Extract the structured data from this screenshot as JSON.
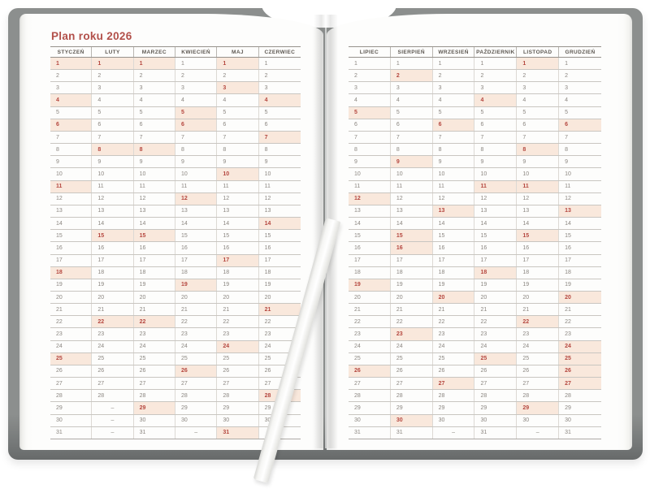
{
  "title": "Plan roku 2026",
  "year": "2026",
  "calendar": {
    "day_numbers": [
      1,
      2,
      3,
      4,
      5,
      6,
      7,
      8,
      9,
      10,
      11,
      12,
      13,
      14,
      15,
      16,
      17,
      18,
      19,
      20,
      21,
      22,
      23,
      24,
      25,
      26,
      27,
      28,
      29,
      30,
      31
    ],
    "placeholder": "–",
    "left_months": [
      {
        "name": "STYCZEŃ",
        "days_in_month": 31,
        "highlighted_days": [
          1,
          4,
          6,
          11,
          18,
          25
        ]
      },
      {
        "name": "LUTY",
        "days_in_month": 28,
        "highlighted_days": [
          1,
          8,
          15,
          22
        ]
      },
      {
        "name": "MARZEC",
        "days_in_month": 31,
        "highlighted_days": [
          1,
          8,
          15,
          22,
          29
        ]
      },
      {
        "name": "KWIECIEŃ",
        "days_in_month": 30,
        "highlighted_days": [
          5,
          6,
          12,
          19,
          26
        ]
      },
      {
        "name": "MAJ",
        "days_in_month": 31,
        "highlighted_days": [
          1,
          3,
          10,
          17,
          24,
          31
        ]
      },
      {
        "name": "CZERWIEC",
        "days_in_month": 30,
        "highlighted_days": [
          4,
          7,
          14,
          21,
          28
        ]
      }
    ],
    "right_months": [
      {
        "name": "LIPIEC",
        "days_in_month": 31,
        "highlighted_days": [
          5,
          12,
          19,
          26
        ]
      },
      {
        "name": "SIERPIEŃ",
        "days_in_month": 31,
        "highlighted_days": [
          2,
          9,
          15,
          16,
          23,
          30
        ]
      },
      {
        "name": "WRZESIEŃ",
        "days_in_month": 30,
        "highlighted_days": [
          6,
          13,
          20,
          27
        ]
      },
      {
        "name": "PAŹDZIERNIK",
        "days_in_month": 31,
        "highlighted_days": [
          4,
          11,
          18,
          25
        ]
      },
      {
        "name": "LISTOPAD",
        "days_in_month": 30,
        "highlighted_days": [
          1,
          8,
          11,
          15,
          22,
          29
        ]
      },
      {
        "name": "GRUDZIEŃ",
        "days_in_month": 31,
        "highlighted_days": [
          6,
          13,
          20,
          24,
          25,
          26,
          27
        ]
      }
    ]
  },
  "colors": {
    "title_text": "#b2504a",
    "header_text": "#5d5852",
    "day_text": "#8b8680",
    "highlight_bg": "#f9e8dc",
    "highlight_text": "#b5473f",
    "cover": "#8c8f8e",
    "page": "#fdfdfc"
  }
}
